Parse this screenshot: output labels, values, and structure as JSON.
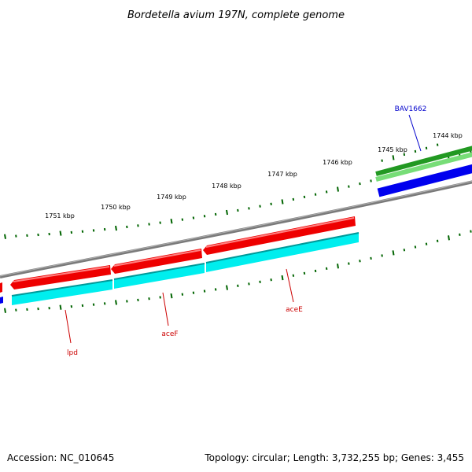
{
  "title": "Bordetella avium 197N, complete genome",
  "footer": {
    "accession": "Accession: NC_010645",
    "summary": "Topology: circular; Length: 3,732,255 bp; Genes: 3,455"
  },
  "colors": {
    "backbone": "#808080",
    "tick": "#006400",
    "forward_cds": "#ff0000",
    "reverse_cds": "#00ffff",
    "orf_green": "#33cc33",
    "orf_blue": "#0000ee",
    "label_red": "#cc0000",
    "label_blue": "#0000cc"
  },
  "scale": {
    "unit": "kbp",
    "labels": [
      {
        "kbp": 1744,
        "text": "1744 kbp"
      },
      {
        "kbp": 1745,
        "text": "1745 kbp"
      },
      {
        "kbp": 1746,
        "text": "1746 kbp"
      },
      {
        "kbp": 1747,
        "text": "1747 kbp"
      },
      {
        "kbp": 1748,
        "text": "1748 kbp"
      },
      {
        "kbp": 1749,
        "text": "1749 kbp"
      },
      {
        "kbp": 1750,
        "text": "1750 kbp"
      },
      {
        "kbp": 1751,
        "text": "1751 kbp"
      }
    ]
  },
  "genes": [
    {
      "name": "BAV1662",
      "color": "#0000cc"
    },
    {
      "name": "aceE",
      "color": "#cc0000"
    },
    {
      "name": "aceF",
      "color": "#cc0000"
    },
    {
      "name": "lpd",
      "color": "#cc0000"
    }
  ]
}
